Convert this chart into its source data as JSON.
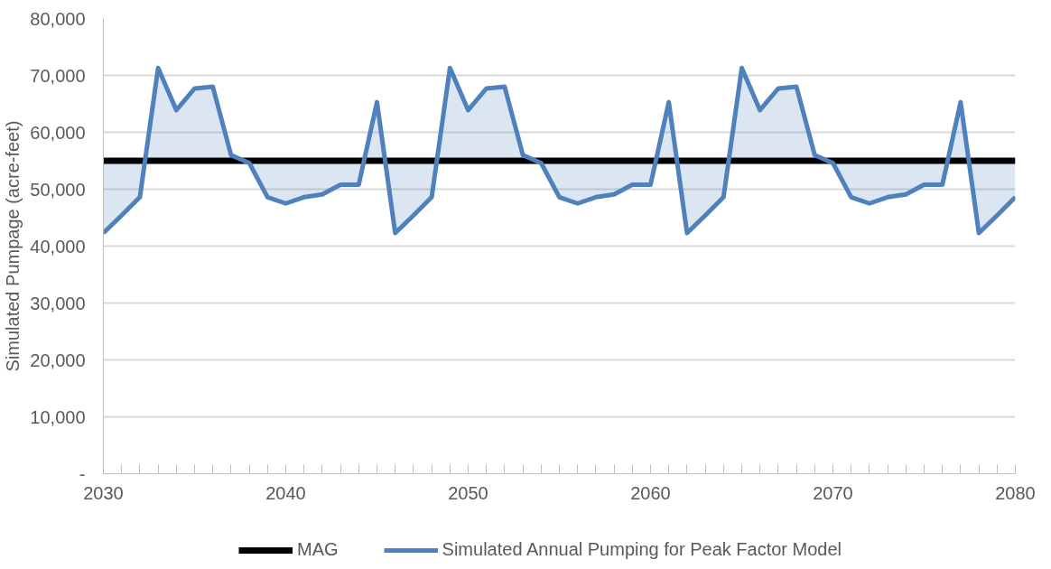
{
  "chart_data": {
    "type": "line",
    "ylabel": "Simulated Pumpage (acre-feet)",
    "x": [
      2030,
      2031,
      2032,
      2033,
      2034,
      2035,
      2036,
      2037,
      2038,
      2039,
      2040,
      2041,
      2042,
      2043,
      2044,
      2045,
      2046,
      2047,
      2048,
      2049,
      2050,
      2051,
      2052,
      2053,
      2054,
      2055,
      2056,
      2057,
      2058,
      2059,
      2060,
      2061,
      2062,
      2063,
      2064,
      2065,
      2066,
      2067,
      2068,
      2069,
      2070,
      2071,
      2072,
      2073,
      2074,
      2075,
      2076,
      2077,
      2078,
      2079,
      2080
    ],
    "series": [
      {
        "name": "MAG",
        "color": "#000000",
        "values": [
          55000,
          55000,
          55000,
          55000,
          55000,
          55000,
          55000,
          55000,
          55000,
          55000,
          55000,
          55000,
          55000,
          55000,
          55000,
          55000,
          55000,
          55000,
          55000,
          55000,
          55000,
          55000,
          55000,
          55000,
          55000,
          55000,
          55000,
          55000,
          55000,
          55000,
          55000,
          55000,
          55000,
          55000,
          55000,
          55000,
          55000,
          55000,
          55000,
          55000,
          55000,
          55000,
          55000,
          55000,
          55000,
          55000,
          55000,
          55000,
          55000,
          55000,
          55000
        ]
      },
      {
        "name": "Simulated Annual Pumping for Peak Factor Model",
        "color": "#4f81bd",
        "values": [
          42300,
          45400,
          48600,
          71300,
          63900,
          67700,
          68000,
          56000,
          54600,
          48600,
          47500,
          48600,
          49100,
          50800,
          50800,
          65300,
          42300,
          45400,
          48600,
          71300,
          63900,
          67700,
          68000,
          56000,
          54600,
          48600,
          47500,
          48600,
          49100,
          50800,
          50800,
          65300,
          42300,
          45400,
          48600,
          71300,
          63900,
          67700,
          68000,
          56000,
          54600,
          48600,
          47500,
          48600,
          49100,
          50800,
          50800,
          65300,
          42300,
          45400,
          48600
        ],
        "lower": [
          55000,
          55000,
          55000,
          55000,
          55000,
          55000,
          55000,
          55000,
          55000,
          55000,
          55000,
          55000,
          55000,
          55000,
          55000,
          55000,
          55000,
          55000,
          55000,
          55000,
          55000,
          55000,
          55000,
          55000,
          55000,
          55000,
          55000,
          55000,
          55000,
          55000,
          55000,
          55000,
          55000,
          55000,
          55000,
          55000,
          55000,
          55000,
          55000,
          55000,
          55000,
          55000,
          55000,
          55000,
          55000,
          55000,
          55000,
          55000,
          55000,
          55000,
          55000
        ],
        "upper": [
          42300,
          45400,
          48600,
          71300,
          63900,
          67700,
          68000,
          56000,
          54600,
          48600,
          47500,
          48600,
          49100,
          50800,
          50800,
          65300,
          42300,
          45400,
          48600,
          71300,
          63900,
          67700,
          68000,
          56000,
          54600,
          48600,
          47500,
          48600,
          49100,
          50800,
          50800,
          65300,
          42300,
          45400,
          48600,
          71300,
          63900,
          67700,
          68000,
          56000,
          54600,
          48600,
          47500,
          48600,
          49100,
          50800,
          50800,
          65300,
          42300,
          45400,
          48600
        ]
      }
    ],
    "xlim": [
      2030,
      2080
    ],
    "ylim": [
      0,
      80000
    ],
    "xticks": [
      2030,
      {
        "value": 2031,
        "label": null
      },
      {
        "value": 2032,
        "label": null
      },
      {
        "value": 2033,
        "label": null
      },
      {
        "value": 2034,
        "label": null
      },
      {
        "value": 2035,
        "label": null
      },
      {
        "value": 2036,
        "label": null
      },
      {
        "value": 2037,
        "label": null
      },
      {
        "value": 2038,
        "label": null
      },
      {
        "value": 2039,
        "label": null
      },
      2040,
      {
        "value": 2041,
        "label": null
      },
      {
        "value": 2042,
        "label": null
      },
      {
        "value": 2043,
        "label": null
      },
      {
        "value": 2044,
        "label": null
      },
      {
        "value": 2045,
        "label": null
      },
      {
        "value": 2046,
        "label": null
      },
      {
        "value": 2047,
        "label": null
      },
      {
        "value": 2048,
        "label": null
      },
      {
        "value": 2049,
        "label": null
      },
      2050,
      {
        "value": 2051,
        "label": null
      },
      {
        "value": 2052,
        "label": null
      },
      {
        "value": 2053,
        "label": null
      },
      {
        "value": 2054,
        "label": null
      },
      {
        "value": 2055,
        "label": null
      },
      {
        "value": 2056,
        "label": null
      },
      {
        "value": 2057,
        "label": null
      },
      {
        "value": 2058,
        "label": null
      },
      {
        "value": 2059,
        "label": null
      },
      2060,
      {
        "value": 2061,
        "label": null
      },
      {
        "value": 2062,
        "label": null
      },
      {
        "value": 2063,
        "label": null
      },
      {
        "value": 2064,
        "label": null
      },
      {
        "value": 2065,
        "label": null
      },
      {
        "value": 2066,
        "label": null
      },
      {
        "value": 2067,
        "label": null
      },
      {
        "value": 2068,
        "label": null
      },
      {
        "value": 2069,
        "label": null
      },
      2070,
      {
        "value": 2071,
        "label": null
      },
      {
        "value": 2072,
        "label": null
      },
      {
        "value": 2073,
        "label": null
      },
      {
        "value": 2074,
        "label": null
      },
      {
        "value": 2075,
        "label": null
      },
      {
        "value": 2076,
        "label": null
      },
      {
        "value": 2077,
        "label": null
      },
      {
        "value": 2078,
        "label": null
      },
      {
        "value": 2079,
        "label": null
      },
      2080
    ],
    "yticks": [
      {
        "value": 0,
        "label": "-"
      },
      {
        "value": 10000,
        "label": "10,000"
      },
      {
        "value": 20000,
        "label": "20,000"
      },
      {
        "value": 30000,
        "label": "30,000"
      },
      {
        "value": 40000,
        "label": "40,000"
      },
      {
        "value": 50000,
        "label": "50,000"
      },
      {
        "value": 60000,
        "label": "60,000"
      },
      {
        "value": 70000,
        "label": "70,000"
      },
      {
        "value": 80000,
        "label": "80,000"
      }
    ],
    "grid": "y",
    "legend": "bottom",
    "marker": "none",
    "line_style": "solid"
  }
}
